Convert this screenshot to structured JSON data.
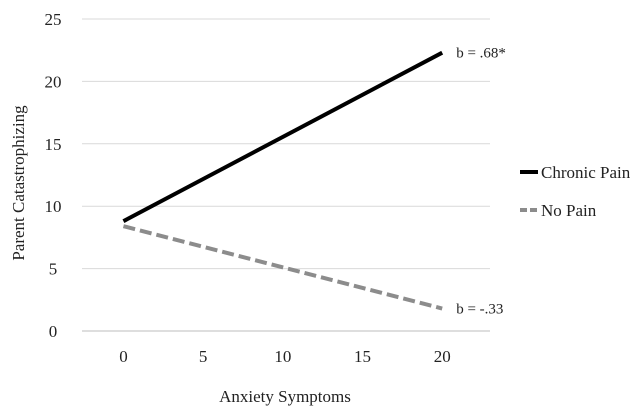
{
  "chart_data": {
    "type": "line",
    "title": "",
    "xlabel": "Anxiety Symptoms",
    "ylabel": "Parent Catastrophizing",
    "x": [
      0,
      20
    ],
    "xticks": [
      0,
      5,
      10,
      15,
      20
    ],
    "yticks": [
      0,
      5,
      10,
      15,
      20,
      25
    ],
    "xlim": [
      -2.6,
      23
    ],
    "ylim": [
      0,
      25
    ],
    "grid": "horizontal",
    "legend_position": "right",
    "series": [
      {
        "name": "Chronic Pain",
        "values": [
          8.8,
          22.3
        ],
        "color": "#000000",
        "style": "solid",
        "annotation": "b = .68*"
      },
      {
        "name": "No Pain",
        "values": [
          8.4,
          1.8
        ],
        "color": "#8c8c8c",
        "style": "dashed",
        "annotation": "b = -.33"
      }
    ]
  }
}
